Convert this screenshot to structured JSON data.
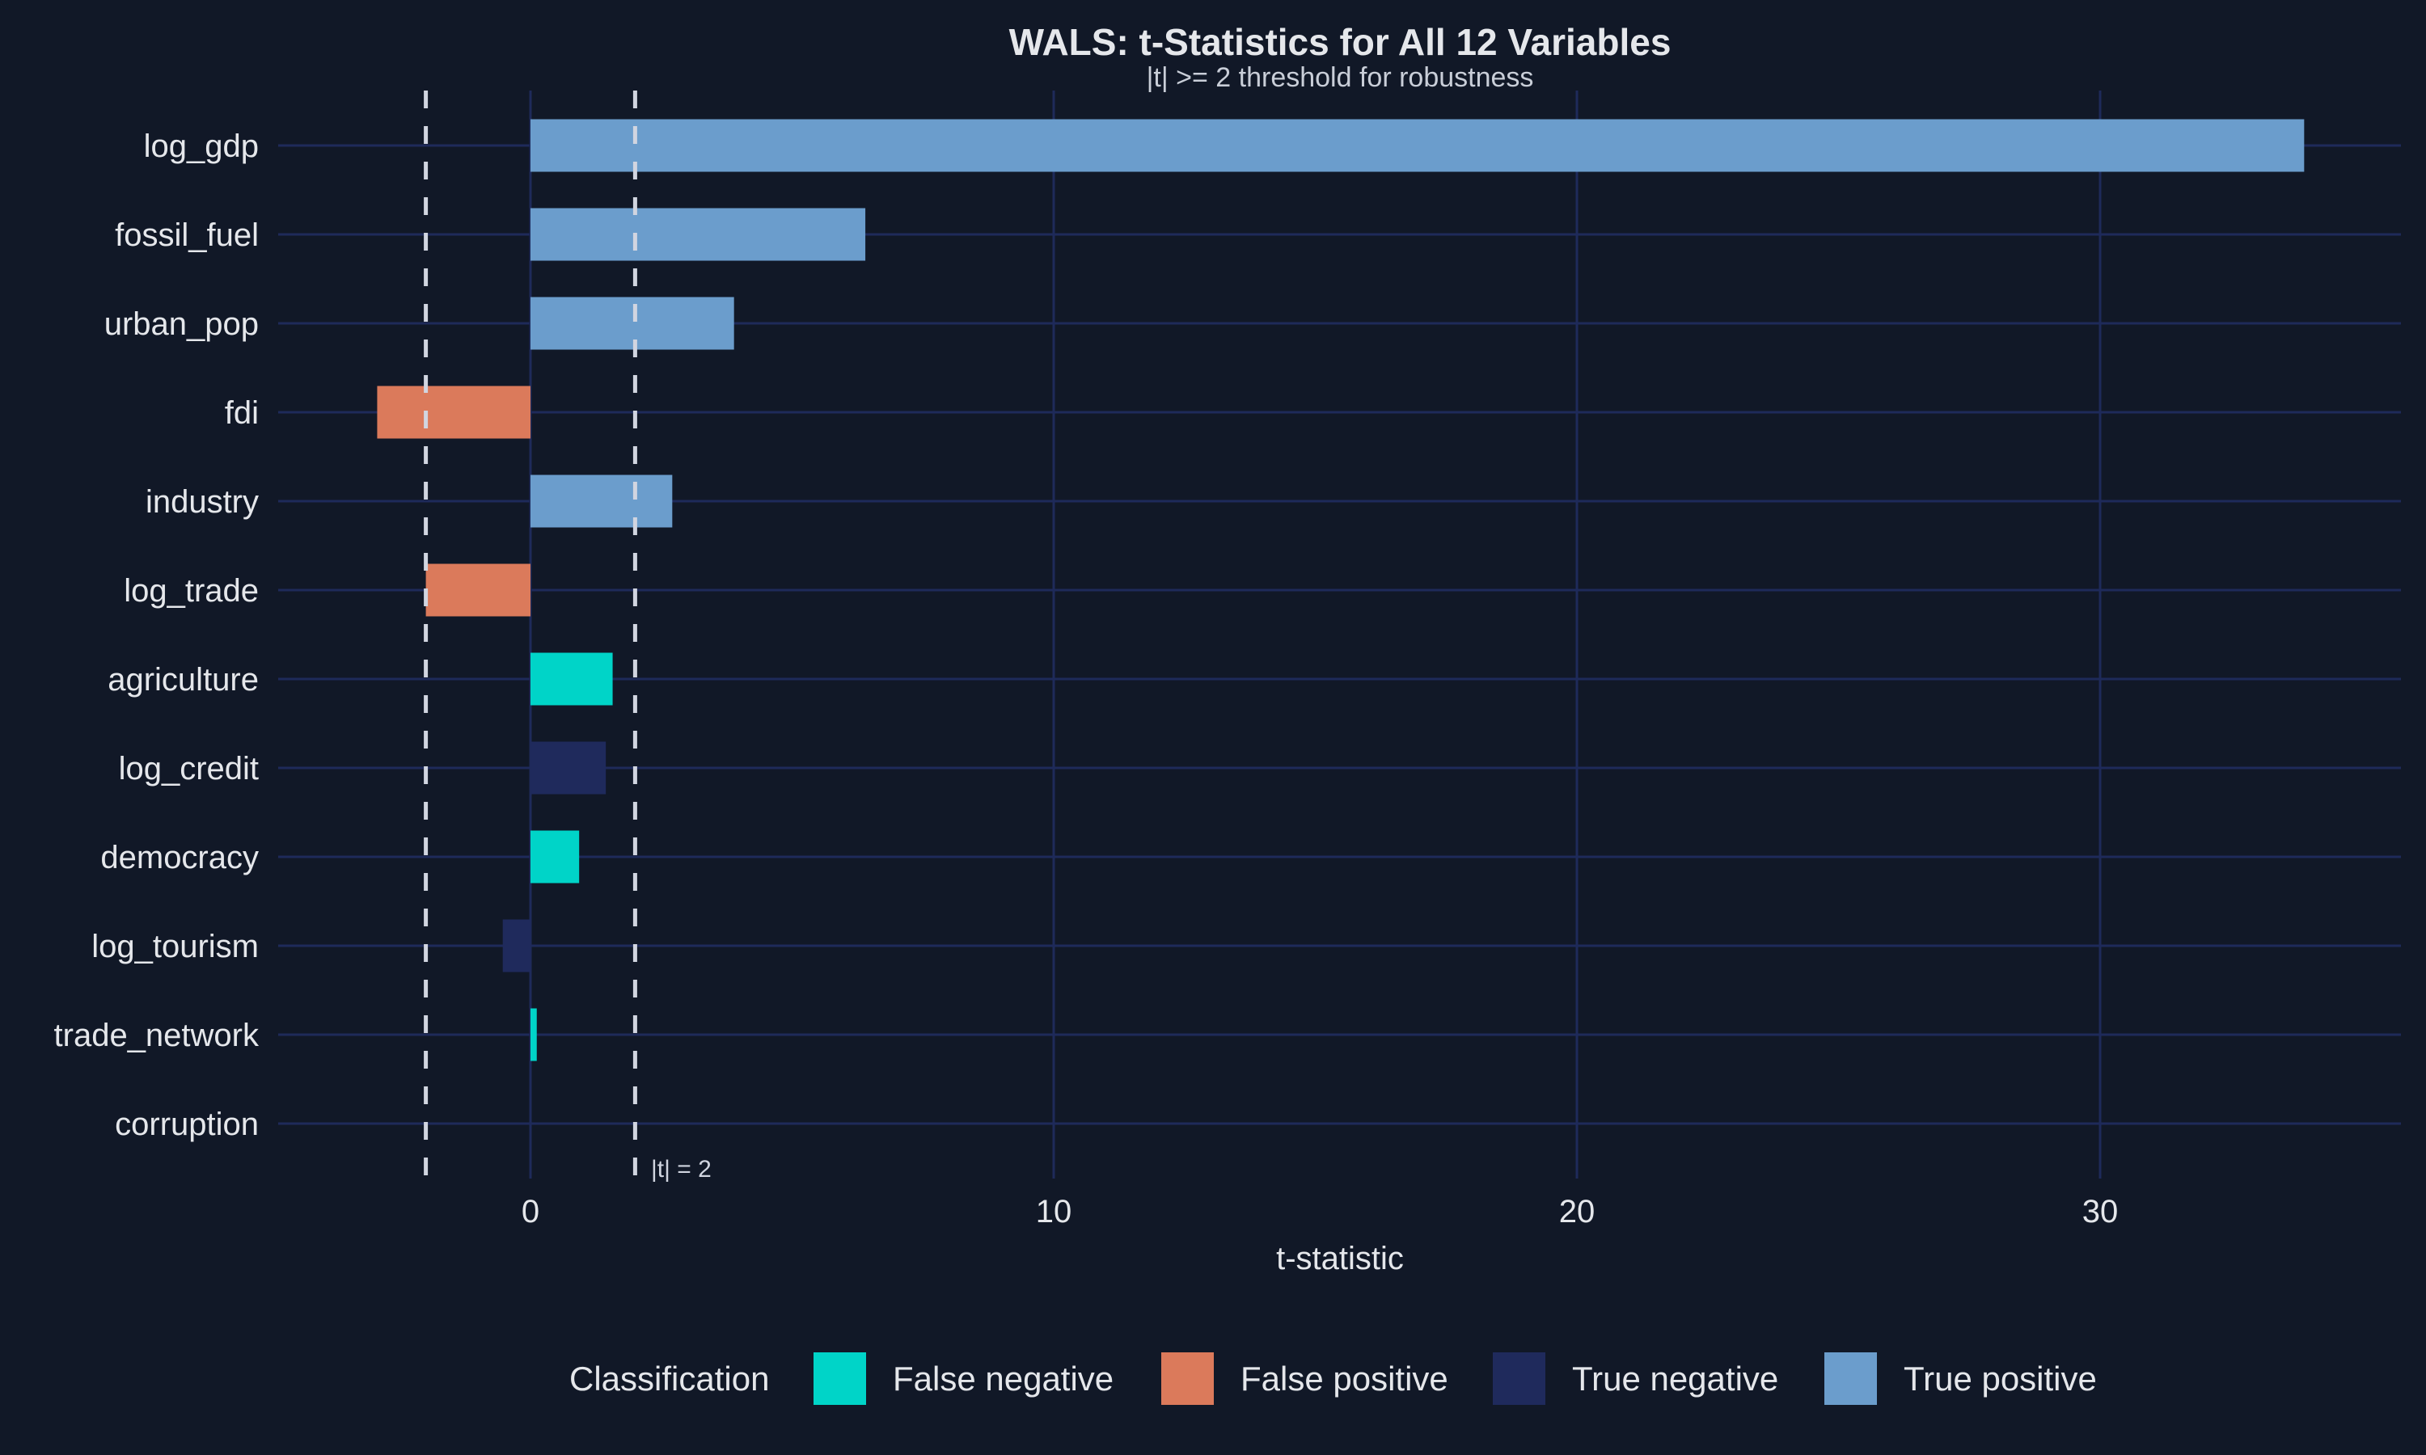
{
  "chart_data": {
    "type": "bar",
    "orientation": "horizontal",
    "title": "WALS: t-Statistics for All 12 Variables",
    "subtitle": "|t| >= 2 threshold for robustness",
    "xlabel": "t-statistic",
    "ylabel": "",
    "xlim": [
      -4.8,
      35.9
    ],
    "xticks": [
      0,
      10,
      20,
      30
    ],
    "grid": true,
    "threshold": {
      "values": [
        -2,
        2
      ],
      "label": "|t| = 2",
      "style": "dashed"
    },
    "categories": [
      "log_gdp",
      "fossil_fuel",
      "urban_pop",
      "fdi",
      "industry",
      "log_trade",
      "agriculture",
      "log_credit",
      "democracy",
      "log_tourism",
      "trade_network",
      "corruption"
    ],
    "values": [
      33.9,
      6.4,
      3.89,
      -2.93,
      2.71,
      -2.0,
      1.57,
      1.44,
      0.93,
      -0.53,
      0.12,
      0.0
    ],
    "classes": [
      "True positive",
      "True positive",
      "True positive",
      "False positive",
      "True positive",
      "False positive",
      "False negative",
      "True negative",
      "False negative",
      "True negative",
      "False negative",
      "True negative"
    ],
    "legend": {
      "title": "Classification",
      "placement": "bottom",
      "entries": [
        {
          "label": "False negative",
          "color": "#00d4c8"
        },
        {
          "label": "False positive",
          "color": "#db7a5b"
        },
        {
          "label": "True negative",
          "color": "#1f2a5c"
        },
        {
          "label": "True positive",
          "color": "#6b9dcc"
        }
      ]
    },
    "colors": {
      "background": "#111827",
      "grid": "#1e2a5a",
      "text": "#e5e7eb",
      "threshold": "#d1d5e0"
    }
  }
}
